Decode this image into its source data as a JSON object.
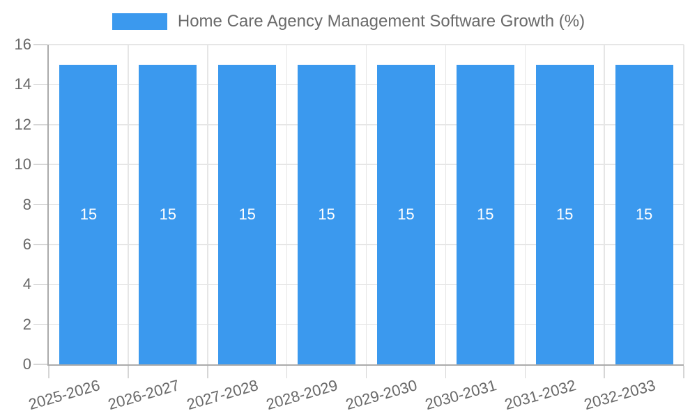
{
  "chart_data": {
    "type": "bar",
    "title": "Home Care Agency Management Software Growth (%)",
    "legend_position": "top",
    "categories": [
      "2025-2026",
      "2026-2027",
      "2027-2028",
      "2028-2029",
      "2029-2030",
      "2030-2031",
      "2031-2032",
      "2032-2033"
    ],
    "series": [
      {
        "name": "Home Care Agency Management Software Growth (%)",
        "values": [
          15,
          15,
          15,
          15,
          15,
          15,
          15,
          15
        ]
      }
    ],
    "bar_labels": [
      "15",
      "15",
      "15",
      "15",
      "15",
      "15",
      "15",
      "15"
    ],
    "xlabel": "",
    "ylabel": "",
    "ylim": [
      0,
      16
    ],
    "yticks": [
      0,
      2,
      4,
      6,
      8,
      10,
      12,
      14,
      16
    ],
    "grid": true,
    "x_label_rotation_deg": -16,
    "colors": {
      "bar": "#3b99ee",
      "bar_label": "#ffffff",
      "grid_line": "#e6e6e6",
      "tick_mark": "#d6d6d6",
      "axis_line": "#ababab",
      "tick_text": "#696969",
      "legend_text": "#6a6a6a",
      "background": "#ffffff"
    }
  }
}
